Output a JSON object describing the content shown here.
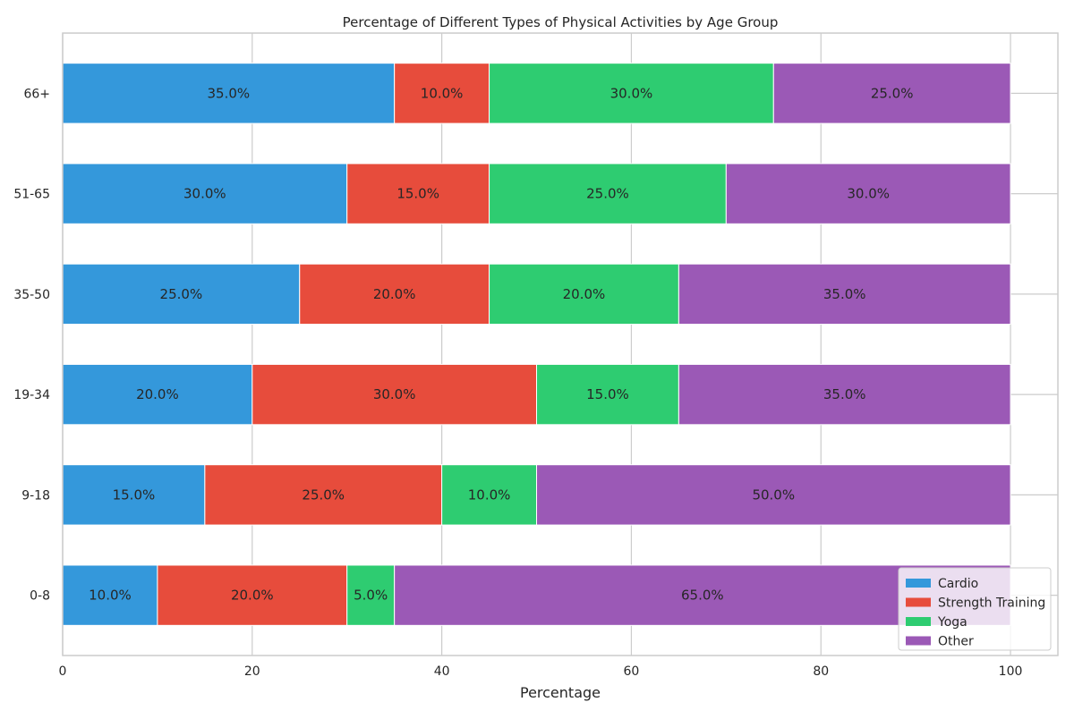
{
  "chart_data": {
    "type": "bar",
    "orientation": "horizontal",
    "stacked": true,
    "title": "Percentage of Different Types of Physical Activities by Age Group",
    "xlabel": "Percentage",
    "ylabel": "",
    "xlim": [
      0,
      105
    ],
    "x_ticks": [
      0,
      20,
      40,
      60,
      80,
      100
    ],
    "categories": [
      "0-8",
      "9-18",
      "19-34",
      "35-50",
      "51-65",
      "66+"
    ],
    "series": [
      {
        "name": "Cardio",
        "color": "#3498db",
        "values": [
          10,
          15,
          20,
          25,
          30,
          35
        ]
      },
      {
        "name": "Strength Training",
        "color": "#e74c3c",
        "values": [
          20,
          25,
          30,
          20,
          15,
          10
        ]
      },
      {
        "name": "Yoga",
        "color": "#2ecc71",
        "values": [
          5,
          10,
          15,
          20,
          25,
          30
        ]
      },
      {
        "name": "Other",
        "color": "#9b59b6",
        "values": [
          65,
          50,
          35,
          35,
          30,
          25
        ]
      }
    ],
    "data_label_suffix": "%",
    "grid": true,
    "legend_position": "lower-right"
  }
}
